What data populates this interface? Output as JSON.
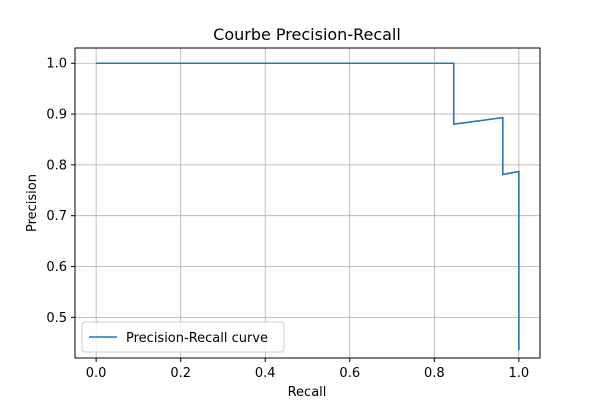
{
  "chart_data": {
    "type": "line",
    "title": "Courbe Precision-Recall",
    "xlabel": "Recall",
    "ylabel": "Precision",
    "xlim": [
      -0.05,
      1.05
    ],
    "ylim": [
      0.42,
      1.03
    ],
    "xticks": [
      0.0,
      0.2,
      0.4,
      0.6,
      0.8,
      1.0
    ],
    "xtick_labels": [
      "0.0",
      "0.2",
      "0.4",
      "0.6",
      "0.8",
      "1.0"
    ],
    "yticks": [
      0.5,
      0.6,
      0.7,
      0.8,
      0.9,
      1.0
    ],
    "ytick_labels": [
      "0.5",
      "0.6",
      "0.7",
      "0.8",
      "0.9",
      "1.0"
    ],
    "grid": true,
    "legend_position": "bottom-left",
    "series": [
      {
        "name": "Precision-Recall curve",
        "color": "#1f77b4",
        "points": [
          [
            0.0,
            1.0
          ],
          [
            0.846,
            1.0
          ],
          [
            0.846,
            0.88
          ],
          [
            0.962,
            0.893
          ],
          [
            0.962,
            0.781
          ],
          [
            1.0,
            0.787
          ],
          [
            1.0,
            0.435
          ]
        ]
      }
    ]
  }
}
